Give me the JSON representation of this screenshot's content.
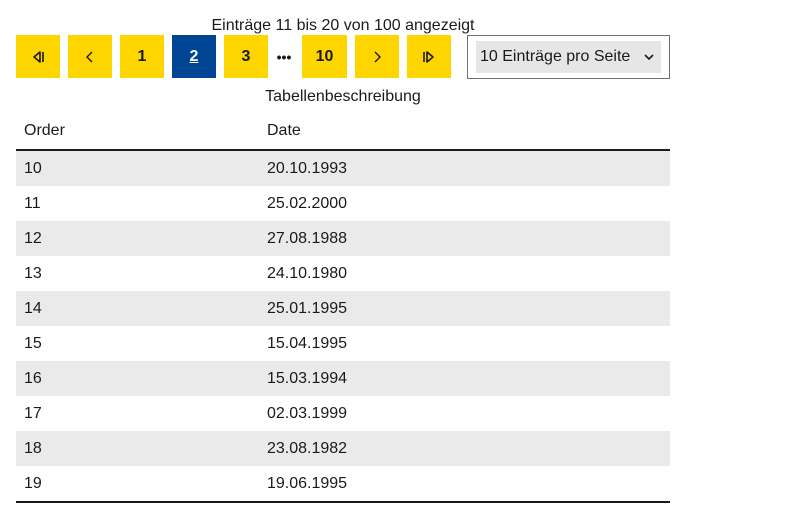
{
  "summary": "Einträge 11 bis 20 von 100 angezeigt",
  "pagination": {
    "first_icon": "first-page-icon",
    "prev_icon": "chevron-left-icon",
    "pages": [
      "1",
      "2",
      "3"
    ],
    "current_page": "2",
    "ellipsis": "•••",
    "last_page": "10",
    "next_icon": "chevron-right-icon",
    "last_icon": "last-page-icon",
    "accent_color": "#ffd500",
    "active_color": "#004494"
  },
  "page_size": {
    "selected": "10 Einträge pro Seite"
  },
  "table": {
    "caption": "Tabellenbeschreibung",
    "headers": [
      "Order",
      "Date"
    ],
    "rows": [
      [
        "10",
        "20.10.1993"
      ],
      [
        "11",
        "25.02.2000"
      ],
      [
        "12",
        "27.08.1988"
      ],
      [
        "13",
        "24.10.1980"
      ],
      [
        "14",
        "25.01.1995"
      ],
      [
        "15",
        "15.04.1995"
      ],
      [
        "16",
        "15.03.1994"
      ],
      [
        "17",
        "02.03.1999"
      ],
      [
        "18",
        "23.08.1982"
      ],
      [
        "19",
        "19.06.1995"
      ]
    ]
  }
}
